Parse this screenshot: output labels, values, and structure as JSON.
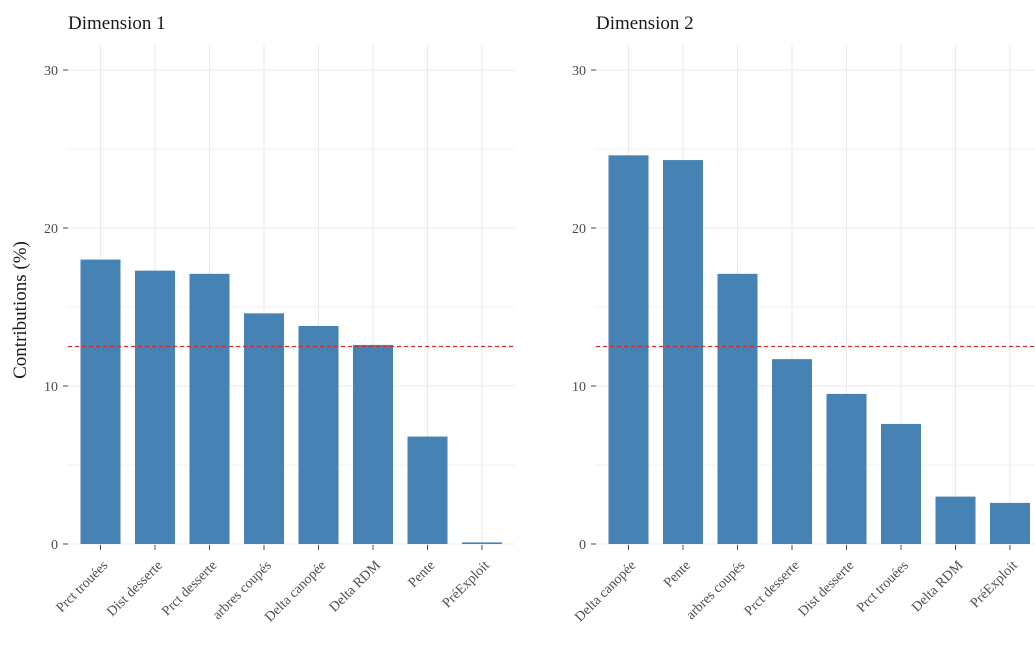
{
  "y_axis_title": "Contributions (%)",
  "colors": {
    "bar": "#4682b4",
    "reference_line": "#e0282a",
    "grid": "#ebebeb",
    "tick": "#4d4d4d"
  },
  "chart_data": [
    {
      "type": "bar",
      "title": "Dimension 1",
      "categories": [
        "Prct trouées",
        "Dist desserte",
        "Prct desserte",
        "arbres coupés",
        "Delta canopée",
        "Delta RDM",
        "Pente",
        "PréExploit"
      ],
      "values": [
        18.0,
        17.3,
        17.1,
        14.6,
        13.8,
        12.6,
        6.8,
        0.1
      ],
      "reference_line": 12.5,
      "ylim": [
        0,
        30
      ],
      "yticks": [
        0,
        10,
        20,
        30
      ],
      "ylabel": "Contributions (%)",
      "grid": true
    },
    {
      "type": "bar",
      "title": "Dimension 2",
      "categories": [
        "Delta canopée",
        "Pente",
        "arbres coupés",
        "Prct desserte",
        "Dist desserte",
        "Prct trouées",
        "Delta RDM",
        "PréExploit"
      ],
      "values": [
        24.6,
        24.3,
        17.1,
        11.7,
        9.5,
        7.6,
        3.0,
        2.6
      ],
      "reference_line": 12.5,
      "ylim": [
        0,
        30
      ],
      "yticks": [
        0,
        10,
        20,
        30
      ],
      "ylabel": "",
      "grid": true
    }
  ]
}
